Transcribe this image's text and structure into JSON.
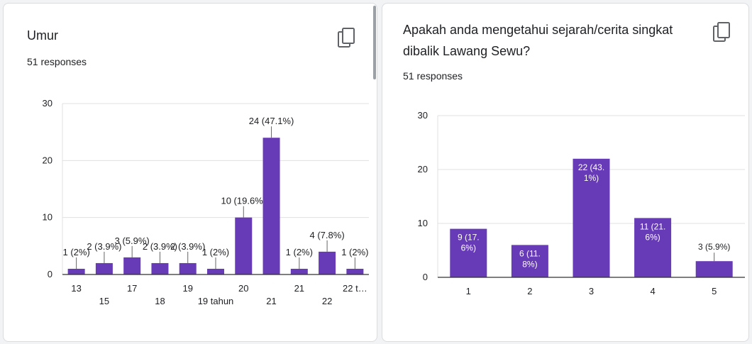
{
  "colors": {
    "bar": "#673ab7",
    "grid": "#e0e0e0",
    "axis": "#333333",
    "text": "#202124"
  },
  "cards": [
    {
      "title": "Umur",
      "responses": "51 responses",
      "copy_icon": "copy-icon"
    },
    {
      "title": "Apakah anda mengetahui sejarah/cerita singkat dibalik Lawang Sewu?",
      "responses": "51 responses",
      "copy_icon": "copy-icon"
    }
  ],
  "chart_data": [
    {
      "type": "bar",
      "categories": [
        "13",
        "15",
        "17",
        "18",
        "19",
        "19 tahun",
        "20",
        "21",
        "21",
        "22",
        "22 t…"
      ],
      "values": [
        1,
        2,
        3,
        2,
        2,
        1,
        10,
        24,
        1,
        4,
        1
      ],
      "data_labels": [
        "1 (2%)",
        "2 (3.9%)",
        "3 (5.9%)",
        "2 (3.9%)",
        "2 (3.9%)",
        "1 (2%)",
        "10 (19.6%)",
        "24 (47.1%)",
        "1 (2%)",
        "4 (7.8%)",
        "1 (2%)"
      ],
      "yticks": [
        "0",
        "10",
        "20",
        "30"
      ],
      "ylim": [
        0,
        30
      ],
      "grid": true
    },
    {
      "type": "bar",
      "categories": [
        "1",
        "2",
        "3",
        "4",
        "5"
      ],
      "values": [
        9,
        6,
        22,
        11,
        3
      ],
      "data_labels": [
        [
          "9 (17.",
          "6%)"
        ],
        [
          "6 (11.",
          "8%)"
        ],
        [
          "22 (43.",
          "1%)"
        ],
        [
          "11 (21.",
          "6%)"
        ],
        [
          "3 (5.9%)"
        ]
      ],
      "yticks": [
        "0",
        "10",
        "20",
        "30"
      ],
      "ylim": [
        0,
        30
      ],
      "grid": true
    }
  ]
}
